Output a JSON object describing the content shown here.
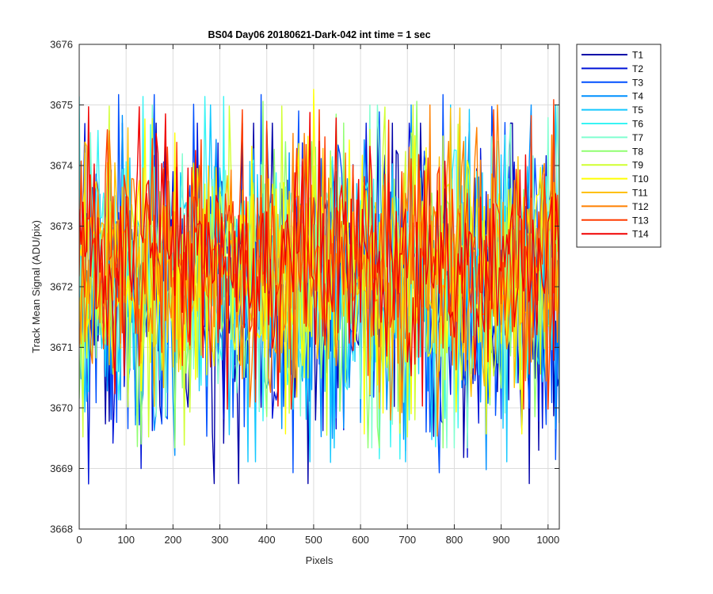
{
  "chart_data": {
    "type": "line",
    "title": "BS04 Day06 20180621-Dark-042 int time = 1 sec",
    "xlabel": "Pixels",
    "ylabel": "Track Mean Signal (ADU/pix)",
    "xlim": [
      0,
      1024
    ],
    "ylim": [
      3668,
      3676
    ],
    "xticks": [
      0,
      100,
      200,
      300,
      400,
      500,
      600,
      700,
      800,
      900,
      1000
    ],
    "yticks": [
      3668,
      3669,
      3670,
      3671,
      3672,
      3673,
      3674,
      3675,
      3676
    ],
    "grid": true,
    "legend_position": "outside-right",
    "x_step": 4,
    "series": [
      {
        "name": "T1",
        "color": "#0000a8",
        "mean": 3672.0,
        "spread": 1.25,
        "peak_max": 3674.7,
        "peak_min": 3668.05
      },
      {
        "name": "T2",
        "color": "#0014d8",
        "mean": 3672.0,
        "spread": 1.25,
        "peak_max": 3674.7,
        "peak_min": 3668.1
      },
      {
        "name": "T3",
        "color": "#0050ff",
        "mean": 3672.05,
        "spread": 1.2,
        "peak_max": 3675.55,
        "peak_min": 3668.4
      },
      {
        "name": "T4",
        "color": "#0090ff",
        "mean": 3672.1,
        "spread": 1.2,
        "peak_max": 3675.0,
        "peak_min": 3668.6
      },
      {
        "name": "T5",
        "color": "#14c8ff",
        "mean": 3672.1,
        "spread": 1.15,
        "peak_max": 3675.0,
        "peak_min": 3668.3
      },
      {
        "name": "T6",
        "color": "#38f4f4",
        "mean": 3672.15,
        "spread": 1.15,
        "peak_max": 3676.0,
        "peak_min": 3668.5
      },
      {
        "name": "T7",
        "color": "#80ffd0",
        "mean": 3672.2,
        "spread": 1.1,
        "peak_max": 3675.0,
        "peak_min": 3668.8
      },
      {
        "name": "T8",
        "color": "#90ff70",
        "mean": 3672.2,
        "spread": 1.1,
        "peak_max": 3675.7,
        "peak_min": 3668.6
      },
      {
        "name": "T9",
        "color": "#d0ff30",
        "mean": 3672.25,
        "spread": 1.05,
        "peak_max": 3675.0,
        "peak_min": 3668.7
      },
      {
        "name": "T10",
        "color": "#ffff00",
        "mean": 3672.3,
        "spread": 1.05,
        "peak_max": 3675.3,
        "peak_min": 3668.6
      },
      {
        "name": "T11",
        "color": "#ffc000",
        "mean": 3672.35,
        "spread": 1.0,
        "peak_max": 3675.0,
        "peak_min": 3669.0
      },
      {
        "name": "T12",
        "color": "#ff8000",
        "mean": 3672.4,
        "spread": 1.0,
        "peak_max": 3675.0,
        "peak_min": 3668.65
      },
      {
        "name": "T13",
        "color": "#ff3c00",
        "mean": 3672.45,
        "spread": 0.95,
        "peak_max": 3675.2,
        "peak_min": 3669.5
      },
      {
        "name": "T14",
        "color": "#f00000",
        "mean": 3672.5,
        "spread": 0.95,
        "peak_max": 3675.25,
        "peak_min": 3669.7
      }
    ]
  }
}
